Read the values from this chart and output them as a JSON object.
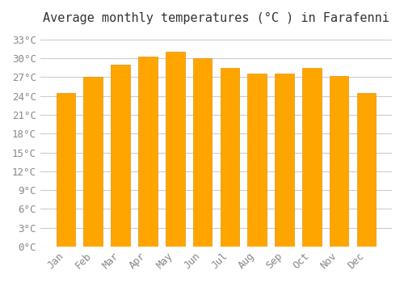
{
  "title": "Average monthly temperatures (°C ) in Farafenni",
  "months": [
    "Jan",
    "Feb",
    "Mar",
    "Apr",
    "May",
    "Jun",
    "Jul",
    "Aug",
    "Sep",
    "Oct",
    "Nov",
    "Dec"
  ],
  "values": [
    24.5,
    27.0,
    29.0,
    30.2,
    31.0,
    30.0,
    28.5,
    27.5,
    27.5,
    28.5,
    27.2,
    24.5
  ],
  "bar_color": "#FFA500",
  "bar_edge_color": "#E8900A",
  "ylim": [
    0,
    34
  ],
  "ytick_step": 3,
  "background_color": "#ffffff",
  "grid_color": "#cccccc",
  "title_fontsize": 11,
  "tick_fontsize": 9
}
